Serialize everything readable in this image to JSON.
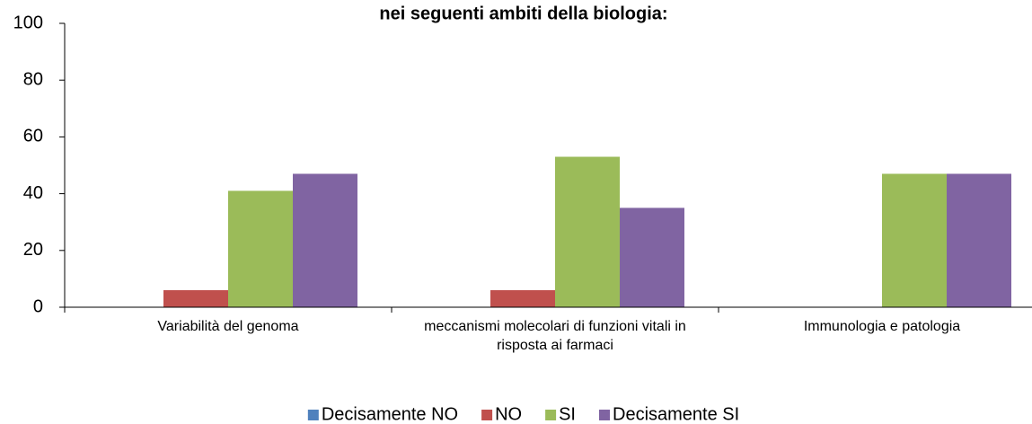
{
  "chart_data": {
    "type": "bar",
    "title": "nei seguenti ambiti della biologia:",
    "categories": [
      "Variabilità del genoma",
      "meccanismi molecolari di funzioni vitali in risposta ai farmaci",
      "Immunologia e patologia"
    ],
    "series": [
      {
        "name": "Decisamente NO",
        "color": "#4f81bd",
        "values": [
          0,
          0,
          0
        ]
      },
      {
        "name": "NO",
        "color": "#c0504d",
        "values": [
          6,
          6,
          0
        ]
      },
      {
        "name": "SI",
        "color": "#9bbb59",
        "values": [
          41,
          53,
          47
        ]
      },
      {
        "name": "Decisamente SI",
        "color": "#8064a2",
        "values": [
          47,
          35,
          47
        ]
      }
    ],
    "ylim": [
      0,
      100
    ],
    "yticks": [
      0,
      20,
      40,
      60,
      80,
      100
    ],
    "grid": false,
    "legend": "bottom"
  }
}
